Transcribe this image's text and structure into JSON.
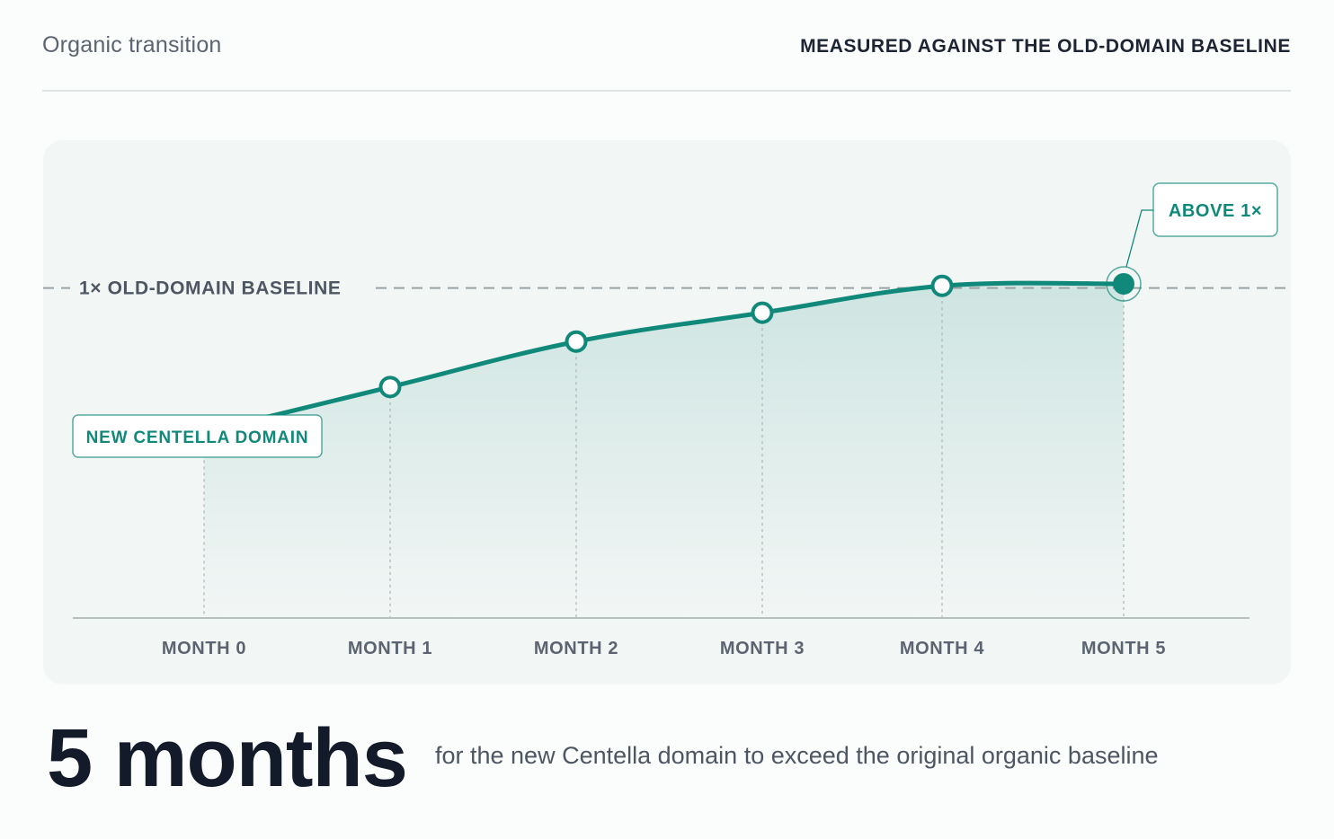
{
  "header": {
    "title": "Organic transition",
    "subtitle": "MEASURED AGAINST THE OLD-DOMAIN BASELINE"
  },
  "chart_data": {
    "type": "line",
    "title": "",
    "xlabel": "",
    "ylabel": "",
    "categories": [
      "MONTH 0",
      "MONTH 1",
      "MONTH 2",
      "MONTH 3",
      "MONTH 4",
      "MONTH 5"
    ],
    "series": [
      {
        "values": [
          0.3,
          0.52,
          0.74,
          0.88,
          1.01,
          1.02
        ]
      }
    ],
    "ylim": [
      -0.6,
      1.02
    ],
    "baseline": {
      "value": 1.0,
      "label": "1× OLD-DOMAIN BASELINE"
    },
    "annotations": {
      "start": "NEW CENTELLA DOMAIN",
      "end": "ABOVE 1×"
    },
    "grid": false,
    "legend": "none",
    "colors": {
      "line": "#11897a",
      "baseline": "#9aa3a6",
      "axis": "#b7c0c0",
      "tick_text": "#5b6470",
      "label": "#11897a"
    }
  },
  "summary": {
    "figure": "5 months",
    "caption": "for the new Centella domain to exceed the original organic baseline"
  }
}
